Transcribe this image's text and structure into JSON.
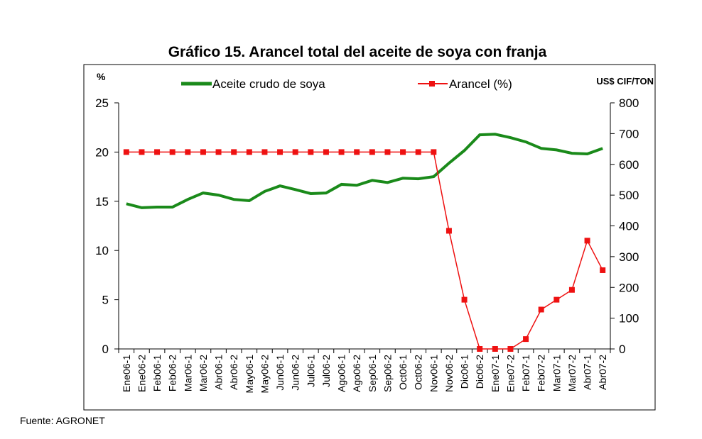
{
  "chart_data": {
    "type": "line",
    "title": "Gráfico 15. Arancel total del aceite de soya con franja",
    "ylabel_left": "%",
    "ylabel_right": "US$ CIF/TON",
    "ylim_left": [
      0,
      25
    ],
    "yticks_left": [
      0,
      5,
      10,
      15,
      20,
      25
    ],
    "ylim_right": [
      0,
      800
    ],
    "yticks_right": [
      0,
      100,
      200,
      300,
      400,
      500,
      600,
      700,
      800
    ],
    "legend_position": "top",
    "categories": [
      "Ene06-1",
      "Ene06-2",
      "Feb06-1",
      "Feb06-2",
      "Mar06-1",
      "Mar06-2",
      "Abr06-1",
      "Abr06-2",
      "May06-1",
      "May06-2",
      "Jun06-1",
      "Jun06-2",
      "Jul06-1",
      "Jul06-2",
      "Ago06-1",
      "Ago06-2",
      "Sep06-1",
      "Sep06-2",
      "Oct06-1",
      "Oct06-2",
      "Nov06-1",
      "Nov06-2",
      "Dic06-1",
      "Dic06-2",
      "Ene07-1",
      "Ene07-2",
      "Feb07-1",
      "Feb07-2",
      "Mar07-1",
      "Mar07-2",
      "Abr07-1",
      "Abr07-2"
    ],
    "series": [
      {
        "name": "Aceite crudo de soya",
        "axis": "right",
        "color": "#1a8a1a",
        "values": [
          472,
          459,
          461,
          461,
          486,
          507,
          500,
          486,
          482,
          512,
          530,
          518,
          505,
          507,
          535,
          532,
          548,
          541,
          555,
          553,
          560,
          604,
          645,
          696,
          698,
          687,
          673,
          652,
          647,
          636,
          634,
          652
        ]
      },
      {
        "name": "Arancel (%)",
        "axis": "left",
        "color": "#ee1111",
        "values": [
          20,
          20,
          20,
          20,
          20,
          20,
          20,
          20,
          20,
          20,
          20,
          20,
          20,
          20,
          20,
          20,
          20,
          20,
          20,
          20,
          20,
          12,
          5,
          0,
          0,
          0,
          1,
          4,
          5,
          6,
          11,
          8
        ]
      }
    ]
  },
  "source": "Fuente: AGRONET"
}
